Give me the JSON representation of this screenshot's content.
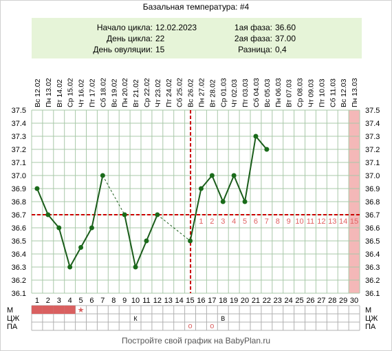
{
  "title": "Базальная температура: #4",
  "info": {
    "cycle_start_label": "Начало цикла:",
    "cycle_start": "12.02.2023",
    "cycle_day_label": "День цикла:",
    "cycle_day": "22",
    "ovulation_day_label": "День овуляции:",
    "ovulation_day": "15",
    "phase1_label": "1ая фаза:",
    "phase1": "36.60",
    "phase2_label": "2ая фаза:",
    "phase2": "37.00",
    "diff_label": "Разница:",
    "diff": "0,4"
  },
  "row_labels": [
    "М",
    "ЦЖ",
    "ПА"
  ],
  "footer": "Постройте свой график на BabyPlan.ru",
  "colors": {
    "line": "#1a5c1a",
    "point": "#1a6b1a",
    "ovulation": "#cc0000",
    "grid": "#a8c8a8",
    "highlight": "#f4b8b8",
    "phase_numbers": "#e06060",
    "menses": "#d96060"
  },
  "chart_data": {
    "type": "line",
    "ylim": [
      36.1,
      37.5
    ],
    "yticks": [
      "37.5",
      "37.4",
      "37.3",
      "37.2",
      "37.1",
      "37.0",
      "36.9",
      "36.8",
      "36.7",
      "36.6",
      "36.5",
      "36.4",
      "36.3",
      "36.2",
      "36.1"
    ],
    "days": [
      1,
      2,
      3,
      4,
      5,
      6,
      7,
      8,
      9,
      10,
      11,
      12,
      13,
      14,
      15,
      16,
      17,
      18,
      19,
      20,
      21,
      22,
      23,
      24,
      25,
      26,
      27,
      28,
      29,
      30
    ],
    "dates": [
      "Вс 12.02",
      "Пн 13.02",
      "Вт 14.02",
      "Ср 15.02",
      "Чт 16.02",
      "Пт 17.02",
      "Сб 18.02",
      "Вс 19.02",
      "Пн 20.02",
      "Вт 21.02",
      "Ср 22.02",
      "Чт 23.02",
      "Пт 24.02",
      "Сб 25.02",
      "Вс 26.02",
      "Пн 27.02",
      "Вт 28.02",
      "Ср 01.03",
      "Чт 02.03",
      "Пт 03.03",
      "Сб 04.03",
      "Вс 05.03",
      "Пн 06.03",
      "Вт 07.03",
      "Ср 08.03",
      "Чт 09.03",
      "Пт 10.03",
      "Сб 11.03",
      "Вс 12.03",
      "Пн 13.03"
    ],
    "temperatures": [
      36.9,
      36.7,
      36.6,
      36.3,
      36.45,
      36.6,
      37.0,
      null,
      36.7,
      36.3,
      36.5,
      36.7,
      null,
      null,
      36.5,
      36.9,
      37.0,
      36.8,
      37.0,
      36.8,
      37.3,
      37.2
    ],
    "cover_line": 36.7,
    "ovulation_day": 15,
    "highlight_day": 30,
    "luteal_day_numbers": [
      "1",
      "2",
      "3",
      "4",
      "5",
      "6",
      "7",
      "8",
      "9",
      "10",
      "11",
      "12",
      "13",
      "14",
      "15"
    ],
    "luteal_start_day": 16,
    "menses_days": [
      1,
      2,
      3,
      4
    ],
    "menses_star_day": 5,
    "menses_star": "★",
    "cervical_marks": [
      {
        "day": 10,
        "text": "К"
      },
      {
        "day": 18,
        "text": "В"
      }
    ],
    "intercourse_marks": [
      {
        "day": 15,
        "text": "о"
      },
      {
        "day": 17,
        "text": "о"
      }
    ]
  }
}
